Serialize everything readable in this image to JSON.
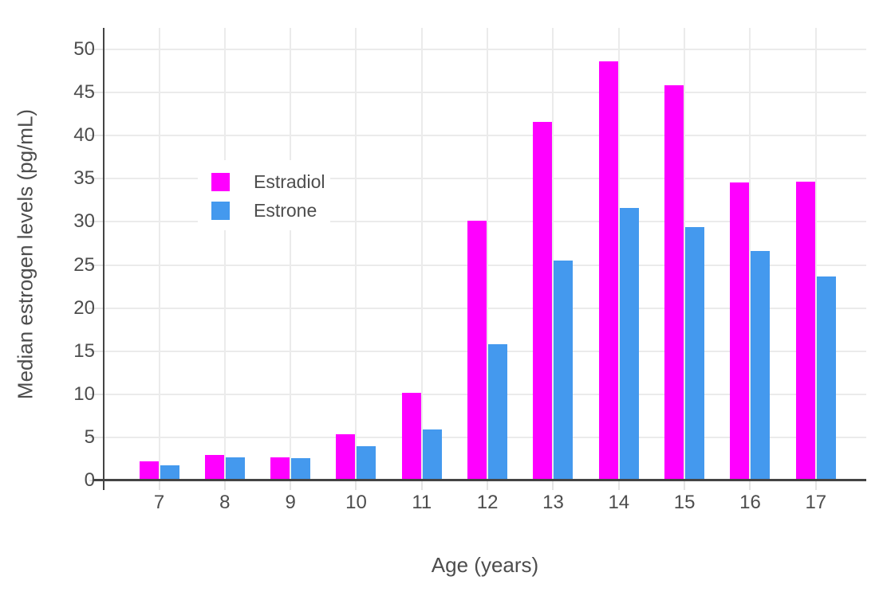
{
  "chart_data": {
    "type": "bar",
    "title": "",
    "xlabel": "Age (years)",
    "ylabel": "Median estrogen levels (pg/mL)",
    "categories": [
      "7",
      "8",
      "9",
      "10",
      "11",
      "12",
      "13",
      "14",
      "15",
      "16",
      "17"
    ],
    "series": [
      {
        "name": "Estradiol",
        "color": "#FF00FF",
        "values": [
          2.2,
          3.0,
          2.7,
          5.4,
          10.2,
          30.1,
          41.6,
          48.6,
          45.8,
          34.6,
          34.7
        ]
      },
      {
        "name": "Estrone",
        "color": "#4499EE",
        "values": [
          1.8,
          2.7,
          2.6,
          4.0,
          5.9,
          15.8,
          25.5,
          31.6,
          29.4,
          26.6,
          23.7
        ]
      }
    ],
    "ylim": [
      0,
      52.5
    ],
    "yticks": [
      0,
      5,
      10,
      15,
      20,
      25,
      30,
      35,
      40,
      45,
      50
    ],
    "grid": true,
    "legend_position": "inside-upper-left"
  },
  "colors": {
    "background": "#ffffff",
    "axis": "#444444",
    "gridline": "#ebebeb",
    "tick": "#e4e4e4",
    "text": "#4d4d4d"
  }
}
